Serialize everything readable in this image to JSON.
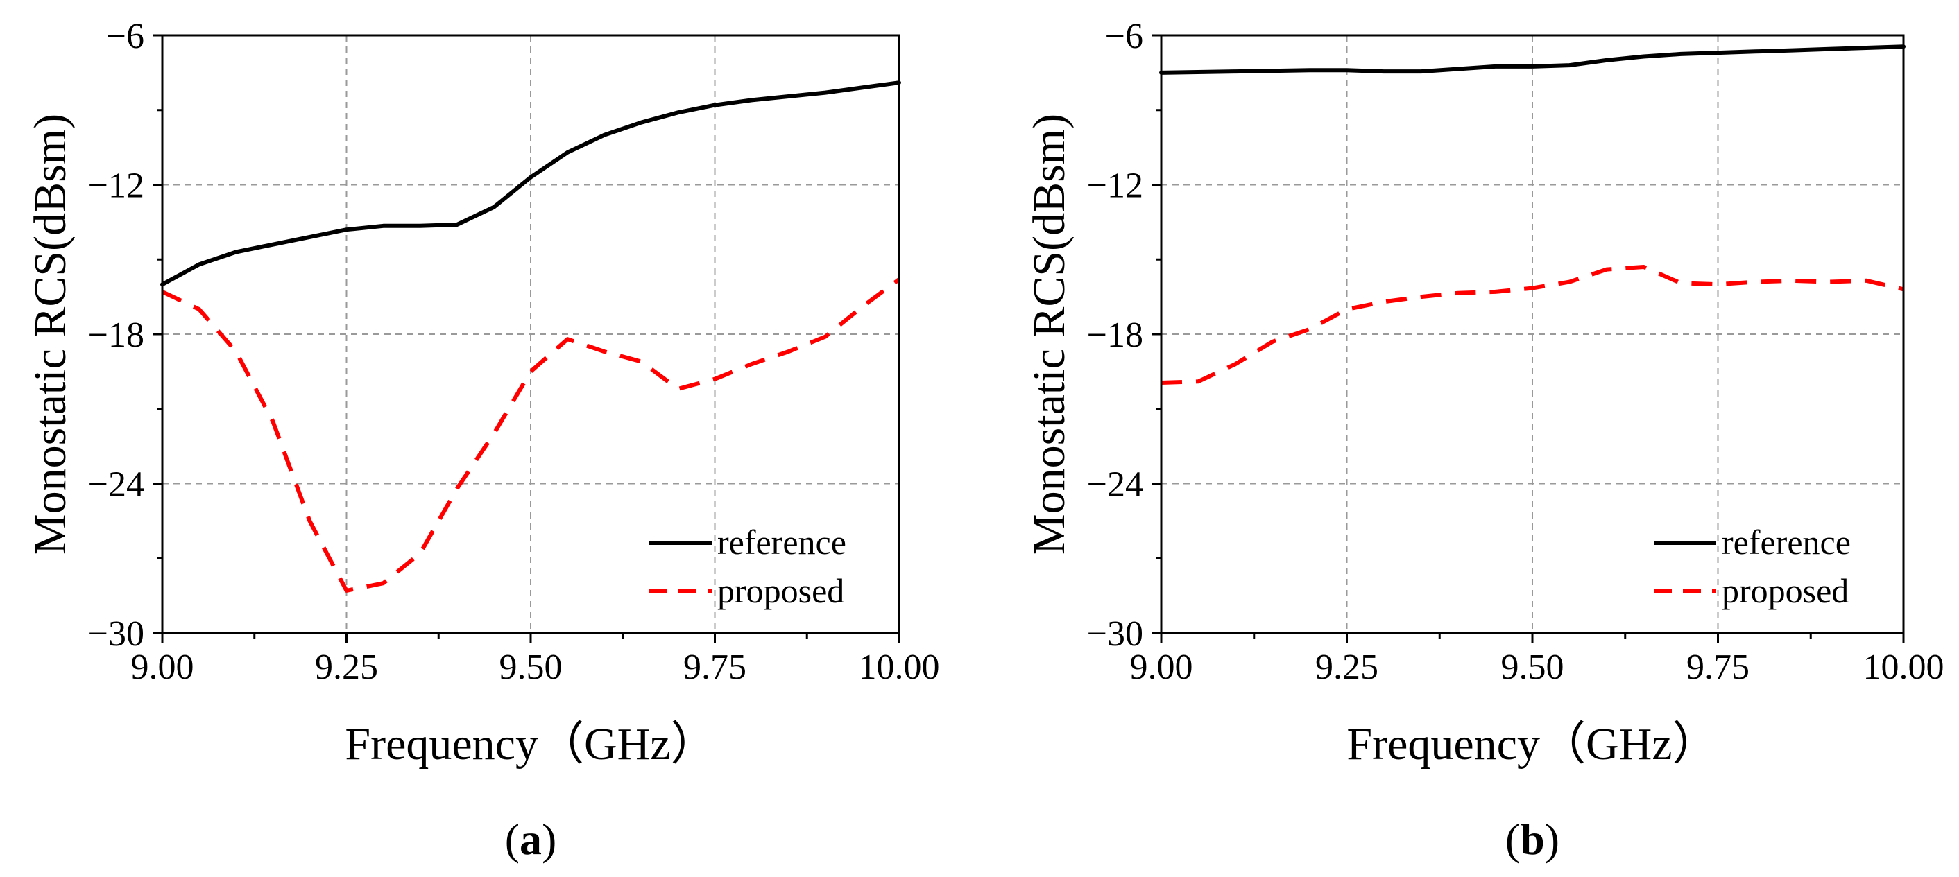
{
  "chart_data": [
    {
      "panel_label": "(a)",
      "panel_letter": "a",
      "type": "line",
      "xlabel": "Frequency（GHz）",
      "ylabel": "Monostatic RCS(dBsm)",
      "xlim": [
        9.0,
        10.0
      ],
      "ylim": [
        -30,
        -6
      ],
      "xticks": [
        9.0,
        9.25,
        9.5,
        9.75,
        10.0
      ],
      "xtick_labels": [
        "9.00",
        "9.25",
        "9.50",
        "9.75",
        "10.00"
      ],
      "yticks": [
        -30,
        -24,
        -18,
        -12,
        -6
      ],
      "ytick_labels": [
        "−30",
        "−24",
        "−18",
        "−12",
        "−6"
      ],
      "grid": true,
      "legend_position": "bottom-right",
      "series": [
        {
          "name": "reference",
          "color": "#000000",
          "style": "solid",
          "x": [
            9.0,
            9.05,
            9.1,
            9.15,
            9.2,
            9.25,
            9.3,
            9.35,
            9.4,
            9.45,
            9.5,
            9.55,
            9.6,
            9.65,
            9.7,
            9.75,
            9.8,
            9.85,
            9.9,
            9.95,
            10.0
          ],
          "y": [
            -16.0,
            -15.2,
            -14.7,
            -14.4,
            -14.1,
            -13.8,
            -13.65,
            -13.65,
            -13.6,
            -12.9,
            -11.7,
            -10.7,
            -10.0,
            -9.5,
            -9.1,
            -8.8,
            -8.6,
            -8.45,
            -8.3,
            -8.1,
            -7.9
          ]
        },
        {
          "name": "proposed",
          "color": "#ff0000",
          "style": "dashed",
          "x": [
            9.0,
            9.05,
            9.1,
            9.15,
            9.2,
            9.25,
            9.3,
            9.35,
            9.4,
            9.45,
            9.5,
            9.55,
            9.6,
            9.65,
            9.7,
            9.75,
            9.8,
            9.85,
            9.9,
            9.95,
            10.0
          ],
          "y": [
            -16.3,
            -17.0,
            -18.7,
            -21.5,
            -25.5,
            -28.3,
            -28.0,
            -26.8,
            -24.2,
            -22.0,
            -19.5,
            -18.2,
            -18.7,
            -19.1,
            -20.2,
            -19.8,
            -19.2,
            -18.7,
            -18.1,
            -16.9,
            -15.8
          ]
        }
      ]
    },
    {
      "panel_label": "(b)",
      "panel_letter": "b",
      "type": "line",
      "xlabel": "Frequency（GHz）",
      "ylabel": "Monostatic RCS(dBsm)",
      "xlim": [
        9.0,
        10.0
      ],
      "ylim": [
        -30,
        -6
      ],
      "xticks": [
        9.0,
        9.25,
        9.5,
        9.75,
        10.0
      ],
      "xtick_labels": [
        "9.00",
        "9.25",
        "9.50",
        "9.75",
        "10.00"
      ],
      "yticks": [
        -30,
        -24,
        -18,
        -12,
        -6
      ],
      "ytick_labels": [
        "−30",
        "−24",
        "−18",
        "−12",
        "−6"
      ],
      "grid": true,
      "legend_position": "bottom-right",
      "series": [
        {
          "name": "reference",
          "color": "#000000",
          "style": "solid",
          "x": [
            9.0,
            9.1,
            9.2,
            9.25,
            9.3,
            9.35,
            9.4,
            9.45,
            9.5,
            9.55,
            9.6,
            9.65,
            9.7,
            9.75,
            9.8,
            9.85,
            9.9,
            9.95,
            10.0
          ],
          "y": [
            -7.5,
            -7.45,
            -7.4,
            -7.4,
            -7.45,
            -7.45,
            -7.35,
            -7.25,
            -7.25,
            -7.2,
            -7.0,
            -6.85,
            -6.75,
            -6.7,
            -6.65,
            -6.6,
            -6.55,
            -6.5,
            -6.45
          ]
        },
        {
          "name": "proposed",
          "color": "#ff0000",
          "style": "dashed",
          "x": [
            9.0,
            9.05,
            9.1,
            9.15,
            9.2,
            9.25,
            9.3,
            9.35,
            9.4,
            9.45,
            9.5,
            9.55,
            9.6,
            9.65,
            9.7,
            9.75,
            9.8,
            9.85,
            9.9,
            9.95,
            10.0
          ],
          "y": [
            -19.95,
            -19.9,
            -19.2,
            -18.3,
            -17.8,
            -17.0,
            -16.7,
            -16.5,
            -16.35,
            -16.3,
            -16.15,
            -15.9,
            -15.4,
            -15.3,
            -15.95,
            -16.0,
            -15.9,
            -15.85,
            -15.9,
            -15.85,
            -16.2
          ]
        }
      ]
    }
  ]
}
